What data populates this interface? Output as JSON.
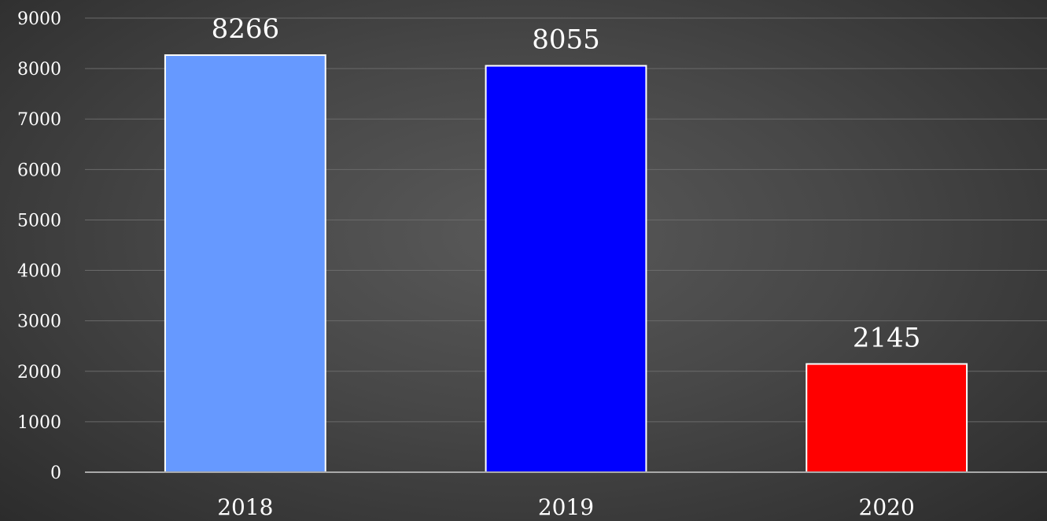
{
  "chart_data": {
    "type": "bar",
    "categories": [
      "2018",
      "2019",
      "2020"
    ],
    "values": [
      8266,
      8055,
      2145
    ],
    "data_labels": [
      "8266",
      "8055",
      "2145"
    ],
    "bar_colors": [
      "#6699ff",
      "#0000ff",
      "#ff0000"
    ],
    "title": "",
    "xlabel": "",
    "ylabel": "",
    "ylim": [
      0,
      9000
    ],
    "yticks": [
      "0",
      "1000",
      "2000",
      "3000",
      "4000",
      "5000",
      "6000",
      "7000",
      "8000",
      "9000"
    ],
    "grid": true,
    "legend": "none"
  }
}
